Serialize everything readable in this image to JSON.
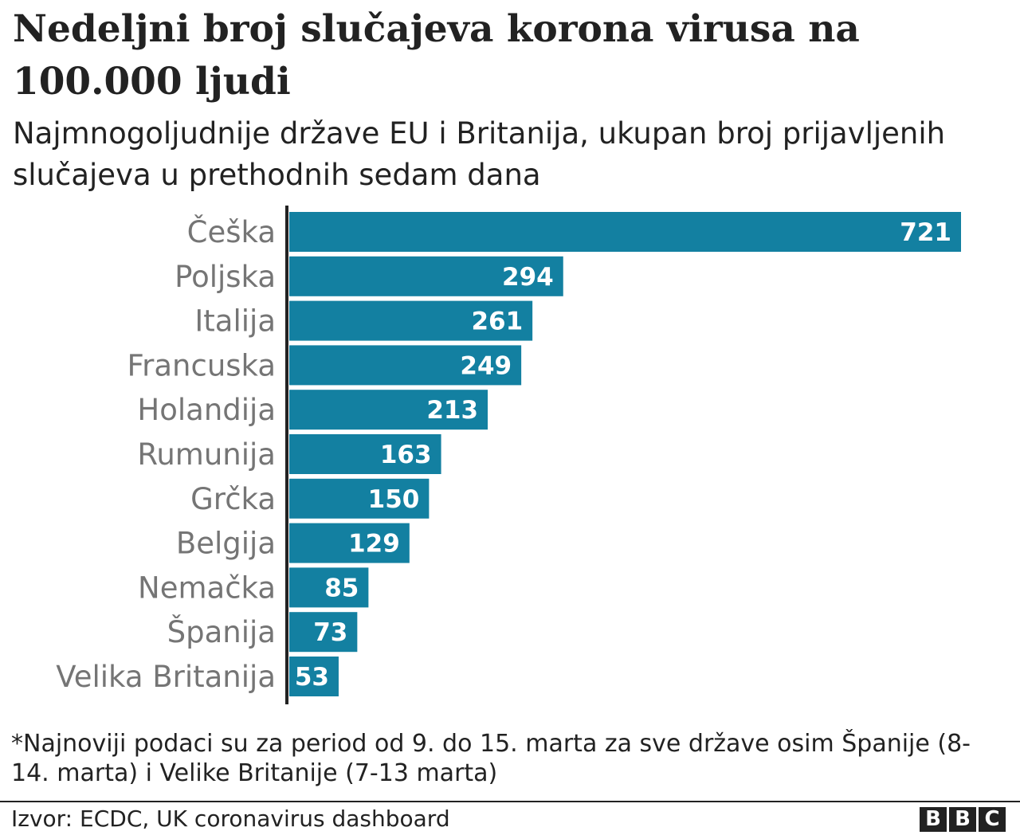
{
  "title": "Nedeljni broj slučajeva korona virusa na 100.000 ljudi",
  "subtitle": "Najmnogoljudnije države EU i Britanija, ukupan broj prijavljenih slučajeva u prethodnih sedam dana",
  "note": "*Najnoviji podaci su za period od 9. do 15. marta za sve države osim Španije (8-14. marta) i Velike Britanije (7-13 marta)",
  "source": "Izvor: ECDC, UK coronavirus dashboard",
  "logo": [
    "B",
    "B",
    "C"
  ],
  "colors": {
    "bar": "#1380A1",
    "label": "#757575",
    "value": "#ffffff",
    "axis": "#222222"
  },
  "chart_data": {
    "type": "bar",
    "orientation": "horizontal",
    "categories": [
      "Češka",
      "Poljska",
      "Italija",
      "Francuska",
      "Holandija",
      "Rumunija",
      "Grčka",
      "Belgija",
      "Nemačka",
      "Španija",
      "Velika Britanija"
    ],
    "values": [
      721,
      294,
      261,
      249,
      213,
      163,
      150,
      129,
      85,
      73,
      53
    ],
    "xlim": [
      0,
      721
    ],
    "grid": false,
    "data_labels": true
  }
}
